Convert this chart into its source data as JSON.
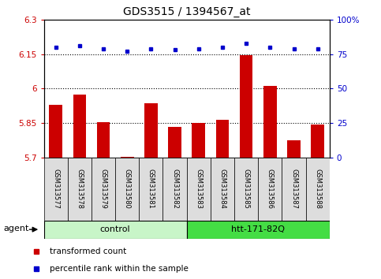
{
  "title": "GDS3515 / 1394567_at",
  "samples": [
    "GSM313577",
    "GSM313578",
    "GSM313579",
    "GSM313580",
    "GSM313581",
    "GSM313582",
    "GSM313583",
    "GSM313584",
    "GSM313585",
    "GSM313586",
    "GSM313587",
    "GSM313588"
  ],
  "red_values": [
    5.93,
    5.975,
    5.855,
    5.705,
    5.935,
    5.835,
    5.85,
    5.865,
    6.145,
    6.01,
    5.775,
    5.845
  ],
  "blue_pct": [
    80,
    81,
    79,
    77,
    79,
    78,
    79,
    80,
    83,
    80,
    79,
    79
  ],
  "ylim_left": [
    5.7,
    6.3
  ],
  "ylim_right": [
    0,
    100
  ],
  "yticks_left": [
    5.7,
    5.85,
    6.0,
    6.15,
    6.3
  ],
  "yticks_right": [
    0,
    25,
    50,
    75,
    100
  ],
  "ytick_labels_left": [
    "5.7",
    "5.85",
    "6",
    "6.15",
    "6.3"
  ],
  "ytick_labels_right": [
    "0",
    "25",
    "50",
    "75",
    "100%"
  ],
  "hlines": [
    5.85,
    6.0,
    6.15
  ],
  "groups": [
    {
      "label": "control",
      "start": 0,
      "end": 6,
      "color": "#C8F5C8"
    },
    {
      "label": "htt-171-82Q",
      "start": 6,
      "end": 12,
      "color": "#44DD44"
    }
  ],
  "agent_label": "agent",
  "legend_red": "transformed count",
  "legend_blue": "percentile rank within the sample",
  "bar_color": "#CC0000",
  "dot_color": "#0000CC",
  "bar_bottom": 5.7,
  "tick_label_color_left": "#CC0000",
  "tick_label_color_right": "#0000CC",
  "background_color": "#FFFFFF",
  "plot_bg_color": "#FFFFFF",
  "cell_bg_color": "#DDDDDD"
}
